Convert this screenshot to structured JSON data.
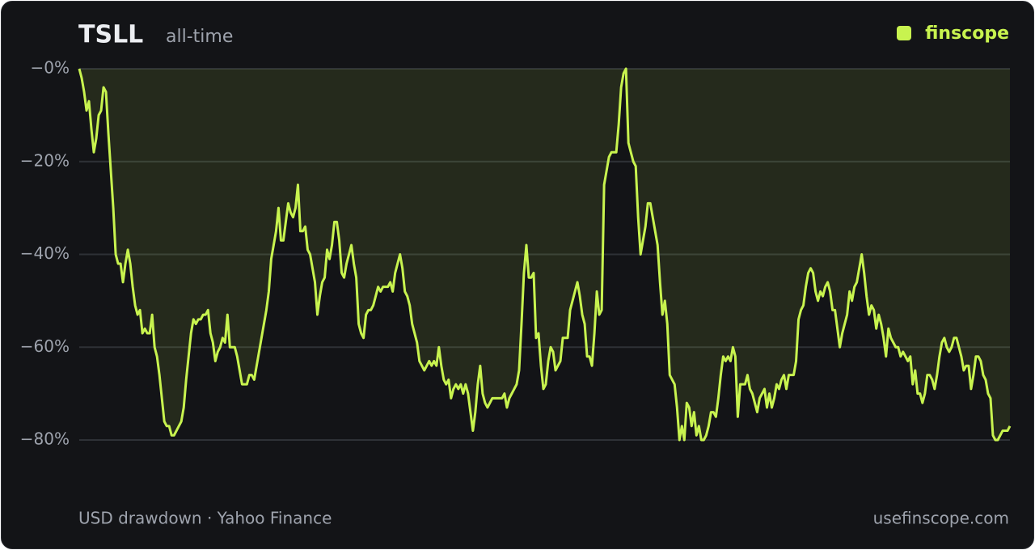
{
  "chart_data": {
    "type": "line",
    "title": "TSLL",
    "subtitle": "all-time",
    "brand": "finscope",
    "source": "USD drawdown · Yahoo Finance",
    "site": "usefinscope.com",
    "color": "#c8f34f",
    "grid": true,
    "ylim": [
      -90,
      0
    ],
    "yticks": [
      {
        "value": 0,
        "label": "−0%"
      },
      {
        "value": -20,
        "label": "−20%"
      },
      {
        "value": -40,
        "label": "−40%"
      },
      {
        "value": -60,
        "label": "−60%"
      },
      {
        "value": -80,
        "label": "−80%"
      }
    ],
    "values": [
      0,
      -2,
      -5,
      -9,
      -7,
      -13,
      -18,
      -15,
      -10,
      -9,
      -4,
      -5,
      -14,
      -22,
      -30,
      -40,
      -42,
      -42,
      -46,
      -42,
      -39,
      -42,
      -47,
      -51,
      -53,
      -52,
      -57,
      -56,
      -57,
      -57,
      -53,
      -60,
      -62,
      -66,
      -71,
      -76,
      -77,
      -77,
      -79,
      -79,
      -78,
      -77,
      -76,
      -73,
      -67,
      -62,
      -57,
      -54,
      -55,
      -54,
      -54,
      -53,
      -53,
      -52,
      -57,
      -59,
      -63,
      -61,
      -60,
      -58,
      -59,
      -53,
      -60,
      -60,
      -60,
      -62,
      -65,
      -68,
      -68,
      -68,
      -66,
      -66,
      -67,
      -64,
      -61,
      -58,
      -55,
      -52,
      -48,
      -41,
      -38,
      -35,
      -30,
      -37,
      -37,
      -33,
      -29,
      -31,
      -32,
      -30,
      -25,
      -35,
      -35,
      -34,
      -39,
      -40,
      -43,
      -46,
      -53,
      -49,
      -46,
      -45,
      -39,
      -41,
      -38,
      -33,
      -33,
      -37,
      -44,
      -45,
      -42,
      -40,
      -38,
      -42,
      -45,
      -55,
      -57,
      -58,
      -53,
      -52,
      -52,
      -51,
      -49,
      -47,
      -48,
      -47,
      -47,
      -47,
      -46,
      -48,
      -44,
      -42,
      -40,
      -43,
      -48,
      -49,
      -51,
      -55,
      -57,
      -59,
      -63,
      -64,
      -65,
      -64,
      -63,
      -64,
      -63,
      -64,
      -60,
      -64,
      -67,
      -68,
      -67,
      -71,
      -69,
      -68,
      -69,
      -68,
      -70,
      -68,
      -70,
      -74,
      -78,
      -74,
      -68,
      -64,
      -70,
      -72,
      -73,
      -72,
      -71,
      -71,
      -71,
      -71,
      -71,
      -70,
      -73,
      -71,
      -70,
      -69,
      -68,
      -65,
      -55,
      -44,
      -38,
      -45,
      -45,
      -44,
      -58,
      -57,
      -64,
      -69,
      -68,
      -63,
      -60,
      -61,
      -65,
      -64,
      -63,
      -58,
      -58,
      -58,
      -52,
      -50,
      -48,
      -46,
      -49,
      -53,
      -55,
      -62,
      -62,
      -64,
      -57,
      -48,
      -53,
      -52,
      -25,
      -22,
      -19,
      -18,
      -18,
      -18,
      -12,
      -4,
      -1,
      0,
      -16,
      -18,
      -20,
      -21,
      -32,
      -40,
      -37,
      -34,
      -29,
      -29,
      -32,
      -35,
      -38,
      -46,
      -53,
      -50,
      -55,
      -66,
      -67,
      -68,
      -73,
      -80,
      -77,
      -80,
      -72,
      -73,
      -77,
      -74,
      -79,
      -77,
      -80,
      -80,
      -79,
      -77,
      -74,
      -74,
      -75,
      -71,
      -66,
      -62,
      -63,
      -62,
      -63,
      -60,
      -62,
      -75,
      -68,
      -68,
      -68,
      -66,
      -69,
      -70,
      -72,
      -74,
      -71,
      -70,
      -69,
      -73,
      -70,
      -73,
      -71,
      -68,
      -69,
      -67,
      -66,
      -69,
      -66,
      -66,
      -66,
      -63,
      -54,
      -52,
      -51,
      -47,
      -44,
      -43,
      -44,
      -48,
      -50,
      -48,
      -49,
      -47,
      -46,
      -48,
      -52,
      -52,
      -56,
      -60,
      -57,
      -55,
      -53,
      -48,
      -50,
      -47,
      -46,
      -43,
      -40,
      -44,
      -49,
      -53,
      -51,
      -52,
      -56,
      -53,
      -55,
      -58,
      -62,
      -56,
      -58,
      -59,
      -60,
      -60,
      -62,
      -61,
      -62,
      -63,
      -62,
      -68,
      -65,
      -70,
      -70,
      -72,
      -70,
      -66,
      -66,
      -67,
      -69,
      -66,
      -62,
      -59,
      -58,
      -60,
      -61,
      -60,
      -58,
      -58,
      -60,
      -62,
      -65,
      -64,
      -64,
      -69,
      -66,
      -62,
      -62,
      -63,
      -66,
      -67,
      -70,
      -71,
      -79,
      -80,
      -80,
      -79,
      -78,
      -78,
      -78,
      -77
    ]
  }
}
